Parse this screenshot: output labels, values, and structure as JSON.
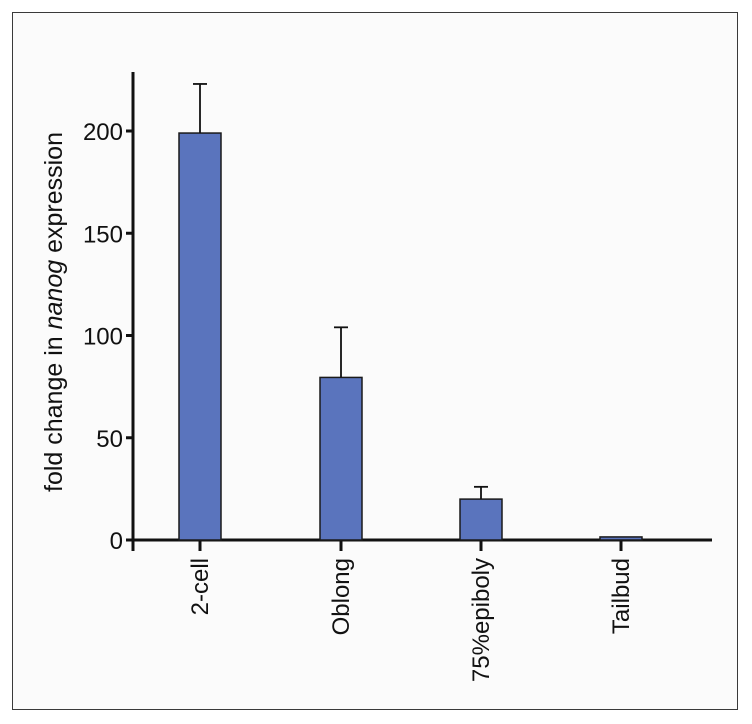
{
  "chart_data": {
    "type": "bar",
    "categories": [
      "2-cell",
      "Oblong",
      "75%epiboly",
      "Tailbud"
    ],
    "values": [
      199,
      79.5,
      20,
      1.5
    ],
    "error_upper": [
      24,
      24.5,
      6,
      0
    ],
    "ylabel_parts": [
      "fold change in ",
      "nanog",
      " expression"
    ],
    "yticks": [
      0,
      50,
      100,
      150,
      200
    ],
    "ylim": [
      0,
      230
    ],
    "grid": false,
    "legend": "none",
    "bar_color": "#5a74bd",
    "bar_stroke": "#1a1a1a"
  }
}
